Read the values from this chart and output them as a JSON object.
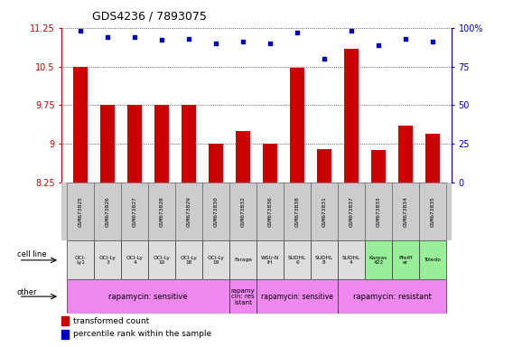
{
  "title": "GDS4236 / 7893075",
  "samples": [
    "GSM673825",
    "GSM673826",
    "GSM673827",
    "GSM673828",
    "GSM673829",
    "GSM673830",
    "GSM673832",
    "GSM673836",
    "GSM673838",
    "GSM673831",
    "GSM673837",
    "GSM673833",
    "GSM673834",
    "GSM673835"
  ],
  "bar_values": [
    10.5,
    9.75,
    9.75,
    9.75,
    9.75,
    9.0,
    9.25,
    9.0,
    10.47,
    8.9,
    10.85,
    8.88,
    9.35,
    9.2
  ],
  "dot_values": [
    98,
    94,
    94,
    92,
    93,
    90,
    91,
    90,
    97,
    80,
    98,
    89,
    93,
    91
  ],
  "bar_color": "#cc0000",
  "dot_color": "#0000cc",
  "ylim_left": [
    8.25,
    11.25
  ],
  "ylim_right": [
    0,
    100
  ],
  "yticks_left": [
    8.25,
    9.0,
    9.75,
    10.5,
    11.25
  ],
  "yticks_right": [
    0,
    25,
    50,
    75,
    100
  ],
  "ytick_labels_left": [
    "8.25",
    "9",
    "9.75",
    "10.5",
    "11.25"
  ],
  "ytick_labels_right": [
    "0",
    "25",
    "50",
    "75",
    "100%"
  ],
  "cell_line_labels": [
    "OCI-\nLy1",
    "OCI-Ly\n3",
    "OCI-Ly\n4",
    "OCI-Ly\n10",
    "OCI-Ly\n18",
    "OCI-Ly\n19",
    "Farage",
    "WSU-N\nIH",
    "SUDHL\n6",
    "SUDHL\n8",
    "SUDHL\n4",
    "Karpas\n422",
    "Pfeiff\ner",
    "Toledo"
  ],
  "cell_line_colors": [
    "#dddddd",
    "#dddddd",
    "#dddddd",
    "#dddddd",
    "#dddddd",
    "#dddddd",
    "#dddddd",
    "#dddddd",
    "#dddddd",
    "#dddddd",
    "#dddddd",
    "#99ee99",
    "#99ee99",
    "#99ee99"
  ],
  "gsm_bg_color": "#cccccc",
  "other_segments": [
    {
      "start": 0,
      "end": 5,
      "label": "rapamycin: sensitive",
      "color": "#ee88ee",
      "fontsize": 6.0
    },
    {
      "start": 6,
      "end": 6,
      "label": "rapamy\ncin: res\nistant",
      "color": "#ee88ee",
      "fontsize": 5.0
    },
    {
      "start": 7,
      "end": 9,
      "label": "rapamycin: sensitive",
      "color": "#ee88ee",
      "fontsize": 5.5
    },
    {
      "start": 10,
      "end": 13,
      "label": "rapamycin: resistant",
      "color": "#ee88ee",
      "fontsize": 6.0
    }
  ],
  "bg_color": "#ffffff",
  "grid_color": "#000000"
}
